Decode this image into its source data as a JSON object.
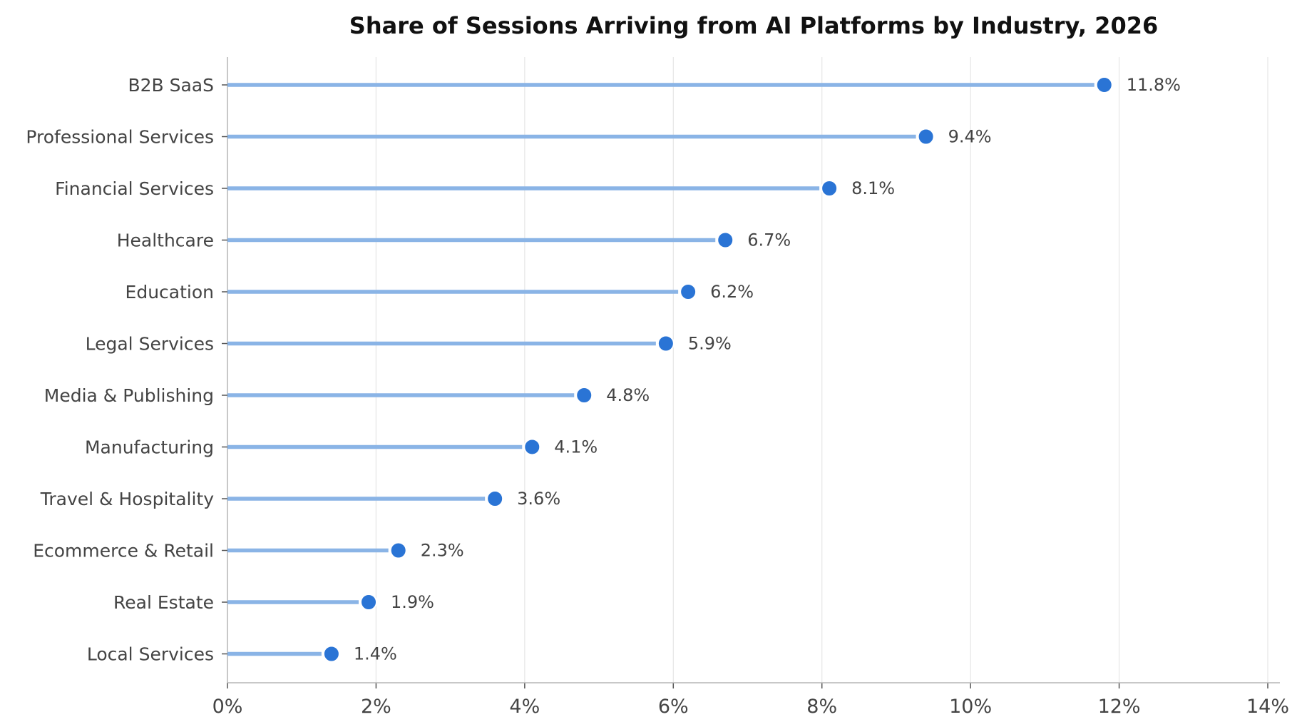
{
  "chart_data": {
    "type": "lollipop",
    "title": "Share of Sessions Arriving from AI Platforms by Industry, 2026",
    "xlabel": "",
    "ylabel": "",
    "xlim": [
      0,
      14
    ],
    "x_ticks": [
      0,
      2,
      4,
      6,
      8,
      10,
      12,
      14
    ],
    "x_tick_labels": [
      "0%",
      "2%",
      "4%",
      "6%",
      "8%",
      "10%",
      "12%",
      "14%"
    ],
    "grid": "vertical",
    "categories": [
      "B2B SaaS",
      "Professional Services",
      "Financial Services",
      "Healthcare",
      "Education",
      "Legal Services",
      "Media & Publishing",
      "Manufacturing",
      "Travel & Hospitality",
      "Ecommerce & Retail",
      "Real Estate",
      "Local Services"
    ],
    "values": [
      11.8,
      9.4,
      8.1,
      6.7,
      6.2,
      5.9,
      4.8,
      4.1,
      3.6,
      2.3,
      1.9,
      1.4
    ],
    "value_labels": [
      "11.8%",
      "9.4%",
      "8.1%",
      "6.7%",
      "6.2%",
      "5.9%",
      "4.8%",
      "4.1%",
      "3.6%",
      "2.3%",
      "1.9%",
      "1.4%"
    ],
    "colors": {
      "stem": "#8ab4e6",
      "dot": "#2a74d5",
      "grid": "#e6e6e6",
      "axis": "#b5b5b5"
    }
  }
}
